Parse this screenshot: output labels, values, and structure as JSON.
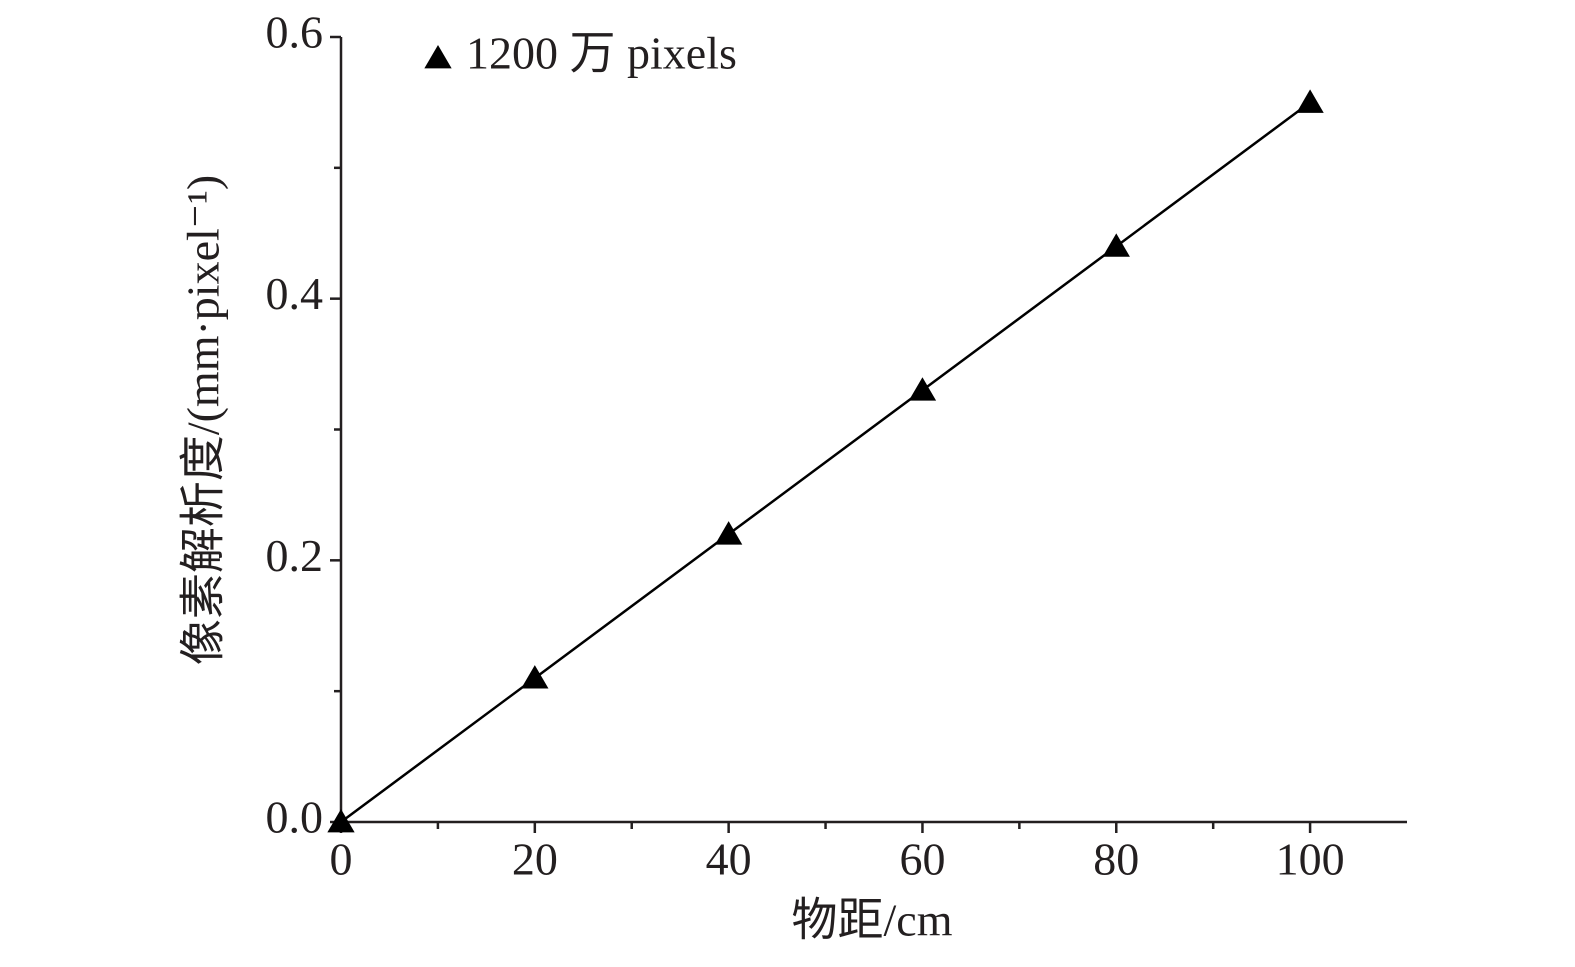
{
  "chart_data": {
    "type": "line",
    "x_label": "物距/cm",
    "y_label": "像素解析度/(mm·pixel⁻¹)",
    "x": [
      0,
      20,
      40,
      60,
      80,
      100
    ],
    "series": [
      {
        "name": "1200 万 pixels",
        "color": "#000000",
        "marker": "triangle",
        "values": [
          0,
          0.11,
          0.22,
          0.33,
          0.44,
          0.55
        ]
      }
    ],
    "xlim": [
      0,
      110
    ],
    "xticks": [
      0,
      20,
      40,
      60,
      80,
      100
    ],
    "xminorticks": [
      10,
      30,
      50,
      70,
      90
    ],
    "ylim": [
      0,
      0.6
    ],
    "yticks": [
      {
        "value": 0,
        "label": "0.0"
      },
      0.2,
      0.4,
      0.6
    ],
    "yminorticks": [
      0.1,
      0.3,
      0.5
    ],
    "legend": "upper-left",
    "grid": false
  }
}
